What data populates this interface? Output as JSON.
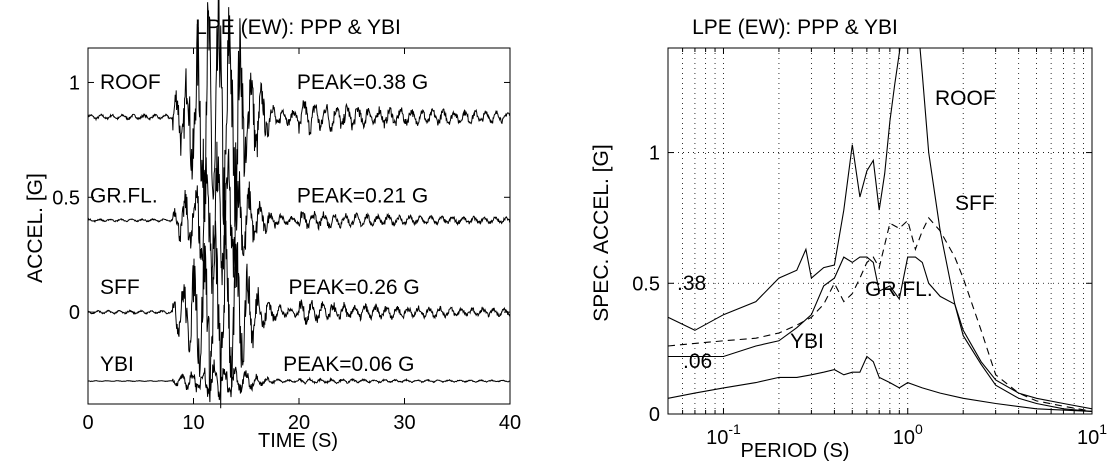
{
  "chart_data": [
    {
      "type": "line",
      "title": "LPE (EW): PPP & YBI",
      "xlabel": "TIME (S)",
      "ylabel": "ACCEL. [G]",
      "xlim": [
        0,
        40
      ],
      "ylim": [
        -0.4,
        1.15
      ],
      "x_ticks": [
        0,
        10,
        20,
        30,
        40
      ],
      "y_ticks": [
        0,
        0.5,
        1
      ],
      "x_tick_labels": [
        "0",
        "10",
        "20",
        "30",
        "40"
      ],
      "y_tick_labels": [
        "0",
        "0.5",
        "1"
      ],
      "grid": false,
      "series": [
        {
          "name": "ROOF",
          "offset": 0.85,
          "peak_text": "PEAK=0.38 G",
          "amp": 0.38
        },
        {
          "name": "GR.FL.",
          "offset": 0.4,
          "peak_text": "PEAK=0.21 G",
          "amp": 0.21
        },
        {
          "name": "SFF",
          "offset": 0.0,
          "peak_text": "PEAK=0.26 G",
          "amp": 0.26
        },
        {
          "name": "YBI",
          "offset": -0.3,
          "peak_text": "PEAK=0.06 G",
          "amp": 0.06
        }
      ]
    },
    {
      "type": "line",
      "title": "LPE (EW): PPP & YBI",
      "xlabel": "PERIOD (S)",
      "ylabel": "SPEC. ACCEL. [G]",
      "xscale": "log",
      "xlim": [
        0.05,
        10
      ],
      "ylim": [
        0,
        1.4
      ],
      "y_ticks": [
        0,
        0.5,
        1
      ],
      "y_tick_labels": [
        "0",
        "0.5",
        "1"
      ],
      "x_tick_labels": [
        {
          "base": "10",
          "exp": "-1"
        },
        {
          "base": "10",
          "exp": "0"
        },
        {
          "base": "10",
          "exp": "1"
        }
      ],
      "grid": true,
      "labels": {
        "roof": "ROOF",
        "sff": "SFF",
        "grfl": "GR.FL.",
        "ybi": "YBI",
        "peak_roof": ".38",
        "peak_ybi": ".06"
      },
      "series": [
        {
          "name": "ROOF",
          "style": "solid",
          "x": [
            0.05,
            0.07,
            0.1,
            0.15,
            0.2,
            0.25,
            0.28,
            0.3,
            0.35,
            0.4,
            0.45,
            0.5,
            0.55,
            0.6,
            0.65,
            0.7,
            0.75,
            0.8,
            0.85,
            0.9,
            0.95,
            1.0,
            1.1,
            1.2,
            1.3,
            1.5,
            1.8,
            2.0,
            2.5,
            3,
            4,
            5,
            7,
            10
          ],
          "y": [
            0.37,
            0.32,
            0.38,
            0.43,
            0.52,
            0.55,
            0.63,
            0.52,
            0.56,
            0.57,
            0.78,
            1.03,
            0.83,
            0.93,
            0.97,
            0.78,
            0.92,
            1.12,
            1.26,
            1.38,
            1.5,
            1.8,
            1.6,
            1.3,
            1.0,
            0.7,
            0.42,
            0.32,
            0.2,
            0.13,
            0.08,
            0.06,
            0.04,
            0.02
          ]
        },
        {
          "name": "GR.FL.",
          "style": "solid",
          "x": [
            0.05,
            0.07,
            0.1,
            0.15,
            0.2,
            0.25,
            0.3,
            0.35,
            0.4,
            0.45,
            0.5,
            0.55,
            0.6,
            0.65,
            0.7,
            0.8,
            0.9,
            1.0,
            1.1,
            1.2,
            1.3,
            1.5,
            1.8,
            2.0,
            2.5,
            3,
            4,
            5,
            7,
            10
          ],
          "y": [
            0.22,
            0.22,
            0.22,
            0.26,
            0.28,
            0.33,
            0.38,
            0.49,
            0.52,
            0.6,
            0.58,
            0.6,
            0.6,
            0.58,
            0.47,
            0.49,
            0.44,
            0.6,
            0.6,
            0.58,
            0.5,
            0.45,
            0.42,
            0.3,
            0.19,
            0.11,
            0.06,
            0.04,
            0.02,
            0.01
          ]
        },
        {
          "name": "SFF",
          "style": "dashed",
          "x": [
            0.05,
            0.07,
            0.1,
            0.15,
            0.2,
            0.25,
            0.3,
            0.35,
            0.4,
            0.45,
            0.5,
            0.55,
            0.6,
            0.65,
            0.7,
            0.8,
            0.9,
            1.0,
            1.1,
            1.2,
            1.3,
            1.5,
            1.8,
            2.0,
            2.5,
            3,
            4,
            5,
            7,
            10
          ],
          "y": [
            0.26,
            0.27,
            0.28,
            0.29,
            0.31,
            0.34,
            0.37,
            0.42,
            0.5,
            0.43,
            0.46,
            0.52,
            0.58,
            0.6,
            0.56,
            0.73,
            0.71,
            0.74,
            0.63,
            0.7,
            0.75,
            0.7,
            0.6,
            0.52,
            0.32,
            0.15,
            0.08,
            0.05,
            0.03,
            0.01
          ]
        },
        {
          "name": "YBI",
          "style": "solid",
          "x": [
            0.05,
            0.07,
            0.1,
            0.15,
            0.2,
            0.25,
            0.3,
            0.35,
            0.4,
            0.45,
            0.5,
            0.55,
            0.6,
            0.65,
            0.7,
            0.8,
            0.9,
            1.0,
            1.2,
            1.5,
            2.0,
            3,
            5,
            10
          ],
          "y": [
            0.06,
            0.08,
            0.1,
            0.12,
            0.14,
            0.14,
            0.15,
            0.16,
            0.17,
            0.15,
            0.16,
            0.16,
            0.22,
            0.2,
            0.14,
            0.12,
            0.1,
            0.12,
            0.1,
            0.08,
            0.06,
            0.04,
            0.02,
            0.01
          ]
        }
      ]
    }
  ]
}
